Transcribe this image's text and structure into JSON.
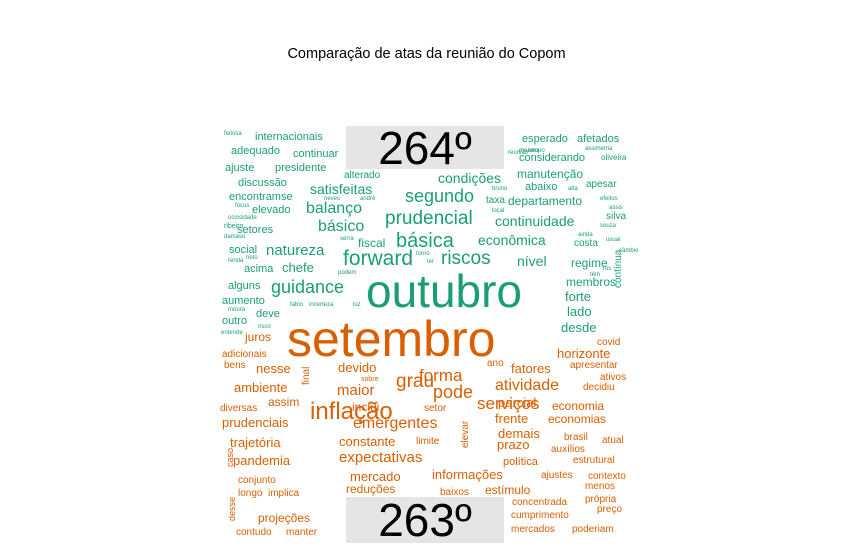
{
  "chart_data": {
    "type": "wordcloud",
    "title": "Comparação de atas da reunião do Copom",
    "groups": [
      {
        "label": "264º",
        "color": "#1b9e77"
      },
      {
        "label": "263º",
        "color": "#d95f02"
      }
    ],
    "words": [
      {
        "text": "outubro",
        "group": 0,
        "size": 46
      },
      {
        "text": "forward",
        "group": 0,
        "size": 21
      },
      {
        "text": "básica",
        "group": 0,
        "size": 20
      },
      {
        "text": "prudencial",
        "group": 0,
        "size": 19
      },
      {
        "text": "riscos",
        "group": 0,
        "size": 19
      },
      {
        "text": "segundo",
        "group": 0,
        "size": 18
      },
      {
        "text": "guidance",
        "group": 0,
        "size": 18
      },
      {
        "text": "balanço",
        "group": 0,
        "size": 16
      },
      {
        "text": "básico",
        "group": 0,
        "size": 16
      },
      {
        "text": "natureza",
        "group": 0,
        "size": 15
      },
      {
        "text": "satisfeitas",
        "group": 0,
        "size": 14
      },
      {
        "text": "condições",
        "group": 0,
        "size": 14
      },
      {
        "text": "continuidade",
        "group": 0,
        "size": 14
      },
      {
        "text": "econômica",
        "group": 0,
        "size": 14
      },
      {
        "text": "nível",
        "group": 0,
        "size": 14
      },
      {
        "text": "chefe",
        "group": 0,
        "size": 13
      },
      {
        "text": "forte",
        "group": 0,
        "size": 13
      },
      {
        "text": "membros",
        "group": 0,
        "size": 12
      },
      {
        "text": "lado",
        "group": 0,
        "size": 13
      },
      {
        "text": "desde",
        "group": 0,
        "size": 13
      },
      {
        "text": "regime",
        "group": 0,
        "size": 12
      },
      {
        "text": "fiscal",
        "group": 0,
        "size": 12
      },
      {
        "text": "manutenção",
        "group": 0,
        "size": 12
      },
      {
        "text": "departamento",
        "group": 0,
        "size": 12
      },
      {
        "text": "considerando",
        "group": 0,
        "size": 11
      },
      {
        "text": "esperado",
        "group": 0,
        "size": 11
      },
      {
        "text": "afetados",
        "group": 0,
        "size": 11
      },
      {
        "text": "internacionais",
        "group": 0,
        "size": 11
      },
      {
        "text": "adequado",
        "group": 0,
        "size": 11
      },
      {
        "text": "continuar",
        "group": 0,
        "size": 11
      },
      {
        "text": "presidente",
        "group": 0,
        "size": 11
      },
      {
        "text": "ajuste",
        "group": 0,
        "size": 11
      },
      {
        "text": "discussão",
        "group": 0,
        "size": 11
      },
      {
        "text": "encontramse",
        "group": 0,
        "size": 11
      },
      {
        "text": "elevado",
        "group": 0,
        "size": 11
      },
      {
        "text": "setores",
        "group": 0,
        "size": 11
      },
      {
        "text": "social",
        "group": 0,
        "size": 11
      },
      {
        "text": "acima",
        "group": 0,
        "size": 11
      },
      {
        "text": "alguns",
        "group": 0,
        "size": 11
      },
      {
        "text": "aumento",
        "group": 0,
        "size": 11
      },
      {
        "text": "deve",
        "group": 0,
        "size": 11
      },
      {
        "text": "outro",
        "group": 0,
        "size": 11
      },
      {
        "text": "abaixo",
        "group": 0,
        "size": 11
      },
      {
        "text": "apesar",
        "group": 0,
        "size": 10
      },
      {
        "text": "costa",
        "group": 0,
        "size": 10
      },
      {
        "text": "silva",
        "group": 0,
        "size": 10
      },
      {
        "text": "contínua",
        "group": 0,
        "size": 10,
        "rotate": true
      },
      {
        "text": "alterado",
        "group": 0,
        "size": 10
      },
      {
        "text": "taxa",
        "group": 0,
        "size": 10
      },
      {
        "text": "oliveira",
        "group": 0,
        "size": 8
      },
      {
        "text": "assimetria",
        "group": 0,
        "size": 6
      },
      {
        "text": "feitosa",
        "group": 0,
        "size": 6
      },
      {
        "text": "ribeiro",
        "group": 0,
        "size": 7
      },
      {
        "text": "damaso",
        "group": 0,
        "size": 6
      },
      {
        "text": "focus",
        "group": 0,
        "size": 6
      },
      {
        "text": "ociosidade",
        "group": 0,
        "size": 6
      },
      {
        "text": "neves",
        "group": 0,
        "size": 6
      },
      {
        "text": "andré",
        "group": 0,
        "size": 6
      },
      {
        "text": "serra",
        "group": 0,
        "size": 6
      },
      {
        "text": "alta",
        "group": 0,
        "size": 6
      },
      {
        "text": "local",
        "group": 0,
        "size": 6
      },
      {
        "text": "bruno",
        "group": 0,
        "size": 6
      },
      {
        "text": "efeitos",
        "group": 0,
        "size": 6
      },
      {
        "text": "assis",
        "group": 0,
        "size": 6
      },
      {
        "text": "souza",
        "group": 0,
        "size": 6
      },
      {
        "text": "ainda",
        "group": 0,
        "size": 6
      },
      {
        "text": "usual",
        "group": 0,
        "size": 6
      },
      {
        "text": "câmbio",
        "group": 0,
        "size": 6
      },
      {
        "text": "torno",
        "group": 0,
        "size": 6
      },
      {
        "text": "ter",
        "group": 0,
        "size": 6
      },
      {
        "text": "podem",
        "group": 0,
        "size": 6
      },
      {
        "text": "renda",
        "group": 0,
        "size": 6
      },
      {
        "text": "neto",
        "group": 0,
        "size": 6
      },
      {
        "text": "rus",
        "group": 0,
        "size": 6
      },
      {
        "text": "têm",
        "group": 0,
        "size": 6
      },
      {
        "text": "fabio",
        "group": 0,
        "size": 6
      },
      {
        "text": "incerteza",
        "group": 0,
        "size": 6
      },
      {
        "text": "luz",
        "group": 0,
        "size": 6
      },
      {
        "text": "moura",
        "group": 0,
        "size": 6
      },
      {
        "text": "risco",
        "group": 0,
        "size": 6
      },
      {
        "text": "entende",
        "group": 0,
        "size": 6
      },
      {
        "text": "reunião",
        "group": 0,
        "size": 6
      },
      {
        "text": "mesmo",
        "group": 0,
        "size": 6
      },
      {
        "text": "tempo",
        "group": 0,
        "size": 6
      },
      {
        "text": "setembro",
        "group": 1,
        "size": 50
      },
      {
        "text": "inflação",
        "group": 1,
        "size": 24
      },
      {
        "text": "grau",
        "group": 1,
        "size": 19
      },
      {
        "text": "pode",
        "group": 1,
        "size": 18
      },
      {
        "text": "forma",
        "group": 1,
        "size": 17
      },
      {
        "text": "serviços",
        "group": 1,
        "size": 17
      },
      {
        "text": "atividade",
        "group": 1,
        "size": 16
      },
      {
        "text": "emergentes",
        "group": 1,
        "size": 16
      },
      {
        "text": "expectativas",
        "group": 1,
        "size": 15
      },
      {
        "text": "maior",
        "group": 1,
        "size": 15
      },
      {
        "text": "ambiente",
        "group": 1,
        "size": 13
      },
      {
        "text": "nesse",
        "group": 1,
        "size": 13
      },
      {
        "text": "devido",
        "group": 1,
        "size": 13
      },
      {
        "text": "fatores",
        "group": 1,
        "size": 13
      },
      {
        "text": "prudenciais",
        "group": 1,
        "size": 13
      },
      {
        "text": "trajetória",
        "group": 1,
        "size": 13
      },
      {
        "text": "pandemia",
        "group": 1,
        "size": 13
      },
      {
        "text": "informações",
        "group": 1,
        "size": 13
      },
      {
        "text": "horizonte",
        "group": 1,
        "size": 13
      },
      {
        "text": "constante",
        "group": 1,
        "size": 13
      },
      {
        "text": "mercado",
        "group": 1,
        "size": 13
      },
      {
        "text": "reduções",
        "group": 1,
        "size": 12
      },
      {
        "text": "estímulo",
        "group": 1,
        "size": 12
      },
      {
        "text": "parcial",
        "group": 1,
        "size": 13
      },
      {
        "text": "frente",
        "group": 1,
        "size": 13
      },
      {
        "text": "prazo",
        "group": 1,
        "size": 13
      },
      {
        "text": "demais",
        "group": 1,
        "size": 13
      },
      {
        "text": "economia",
        "group": 1,
        "size": 12
      },
      {
        "text": "economias",
        "group": 1,
        "size": 12
      },
      {
        "text": "assim",
        "group": 1,
        "size": 12
      },
      {
        "text": "inclui",
        "group": 1,
        "size": 12
      },
      {
        "text": "juros",
        "group": 1,
        "size": 12
      },
      {
        "text": "projeções",
        "group": 1,
        "size": 12
      },
      {
        "text": "política",
        "group": 1,
        "size": 11
      },
      {
        "text": "adicionais",
        "group": 1,
        "size": 10
      },
      {
        "text": "bens",
        "group": 1,
        "size": 10
      },
      {
        "text": "diversas",
        "group": 1,
        "size": 10
      },
      {
        "text": "conjunto",
        "group": 1,
        "size": 10
      },
      {
        "text": "longo",
        "group": 1,
        "size": 10
      },
      {
        "text": "implica",
        "group": 1,
        "size": 10
      },
      {
        "text": "contudo",
        "group": 1,
        "size": 10
      },
      {
        "text": "manter",
        "group": 1,
        "size": 10
      },
      {
        "text": "concentrada",
        "group": 1,
        "size": 10
      },
      {
        "text": "cumprimento",
        "group": 1,
        "size": 10
      },
      {
        "text": "mercados",
        "group": 1,
        "size": 10
      },
      {
        "text": "poderiam",
        "group": 1,
        "size": 10
      },
      {
        "text": "própria",
        "group": 1,
        "size": 10
      },
      {
        "text": "preço",
        "group": 1,
        "size": 10
      },
      {
        "text": "ajustes",
        "group": 1,
        "size": 10
      },
      {
        "text": "contexto",
        "group": 1,
        "size": 10
      },
      {
        "text": "menos",
        "group": 1,
        "size": 10
      },
      {
        "text": "estrutural",
        "group": 1,
        "size": 10
      },
      {
        "text": "auxílios",
        "group": 1,
        "size": 10
      },
      {
        "text": "brasil",
        "group": 1,
        "size": 10
      },
      {
        "text": "atual",
        "group": 1,
        "size": 10
      },
      {
        "text": "apresentar",
        "group": 1,
        "size": 10
      },
      {
        "text": "ativos",
        "group": 1,
        "size": 10
      },
      {
        "text": "decidiu",
        "group": 1,
        "size": 10
      },
      {
        "text": "covid",
        "group": 1,
        "size": 10
      },
      {
        "text": "limite",
        "group": 1,
        "size": 10
      },
      {
        "text": "setor",
        "group": 1,
        "size": 10
      },
      {
        "text": "baixos",
        "group": 1,
        "size": 10
      },
      {
        "text": "elevar",
        "group": 1,
        "size": 10,
        "rotate": true
      },
      {
        "text": "final",
        "group": 1,
        "size": 10,
        "rotate": true
      },
      {
        "text": "sobre",
        "group": 1,
        "size": 7
      },
      {
        "text": "ano",
        "group": 1,
        "size": 10
      },
      {
        "text": "caso",
        "group": 1,
        "size": 9,
        "rotate": true
      },
      {
        "text": "desse",
        "group": 1,
        "size": 9,
        "rotate": true
      }
    ]
  }
}
